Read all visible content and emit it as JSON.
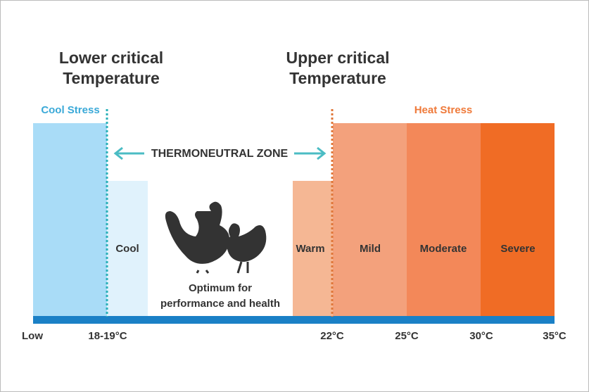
{
  "titles": {
    "lower": [
      "Lower critical",
      "Temperature"
    ],
    "upper": [
      "Upper critical",
      "Temperature"
    ]
  },
  "stress": {
    "cool": "Cool Stress",
    "heat": "Heat Stress"
  },
  "zone": "THERMONEUTRAL ZONE",
  "bands": [
    "Cool",
    "Warm",
    "Mild",
    "Moderate",
    "Severe"
  ],
  "optimum": [
    "Optimum for",
    "performance and health"
  ],
  "axis": [
    "Low",
    "18-19°C",
    "22°C",
    "25°C",
    "30°C",
    "35°C"
  ]
}
